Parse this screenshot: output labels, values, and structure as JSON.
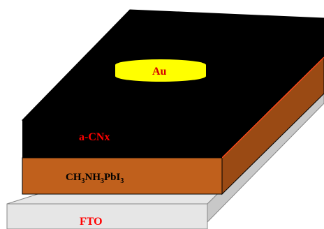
{
  "diagram": {
    "layers": {
      "electrode": {
        "label": "Au",
        "fill": "#ffff00",
        "label_color": "#d40000"
      },
      "carbon_nitride": {
        "label": "a-CNx",
        "fill": "#000000",
        "label_color": "#ff0000"
      },
      "perovskite": {
        "label_parts": {
          "p1": "CH",
          "s1": "3",
          "p2": "NH",
          "s2": "3",
          "p3": "PbI",
          "s3": "3"
        },
        "label_text": "CH3NH3PbI3",
        "fill": "#c0601c",
        "side_fill": "#9a4a14",
        "label_color": "#000000"
      },
      "substrate": {
        "label": "FTO",
        "fill": "#e6e6e6",
        "side_fill": "#c8c8c8",
        "label_color": "#ff0000"
      }
    }
  }
}
